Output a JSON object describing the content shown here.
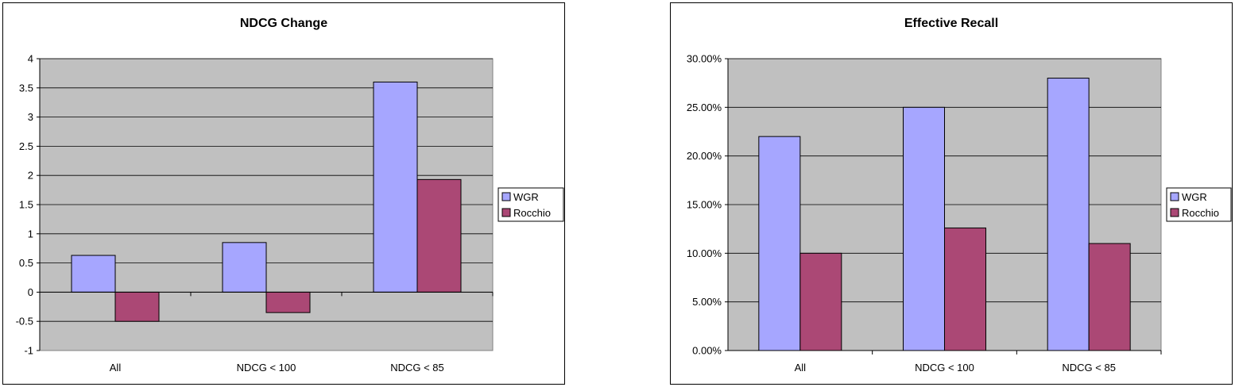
{
  "chart_data": [
    {
      "type": "bar",
      "title": "NDCG Change",
      "categories": [
        "All",
        "NDCG < 100",
        "NDCG < 85"
      ],
      "series": [
        {
          "name": "WGR",
          "values": [
            0.63,
            0.85,
            3.6
          ],
          "color": "#a6a6ff"
        },
        {
          "name": "Rocchio",
          "values": [
            -0.5,
            -0.35,
            1.93
          ],
          "color": "#ab4875"
        }
      ],
      "ylim": [
        -1,
        4
      ],
      "yticks": [
        -1,
        -0.5,
        0,
        0.5,
        1,
        1.5,
        2,
        2.5,
        3,
        3.5,
        4
      ],
      "ytick_labels": [
        "-1",
        "-0.5",
        "0",
        "0.5",
        "1",
        "1.5",
        "2",
        "2.5",
        "3",
        "3.5",
        "4"
      ],
      "grid": true,
      "legend": "right"
    },
    {
      "type": "bar",
      "title": "Effective Recall",
      "categories": [
        "All",
        "NDCG < 100",
        "NDCG < 85"
      ],
      "series": [
        {
          "name": "WGR",
          "values": [
            0.22,
            0.25,
            0.28
          ],
          "color": "#a6a6ff"
        },
        {
          "name": "Rocchio",
          "values": [
            0.1,
            0.126,
            0.11
          ],
          "color": "#ab4875"
        }
      ],
      "ylim": [
        0,
        0.3
      ],
      "yticks": [
        0,
        0.05,
        0.1,
        0.15,
        0.2,
        0.25,
        0.3
      ],
      "ytick_labels": [
        "0.00%",
        "5.00%",
        "10.00%",
        "15.00%",
        "20.00%",
        "25.00%",
        "30.00%"
      ],
      "grid": true,
      "legend": "right"
    }
  ]
}
